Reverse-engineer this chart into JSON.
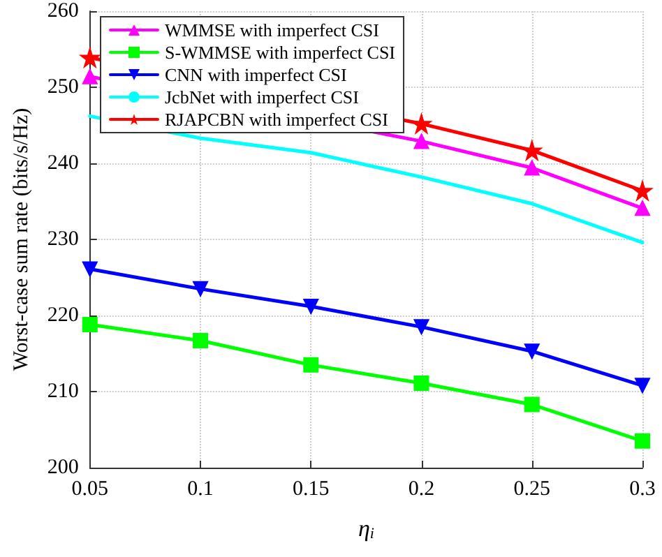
{
  "chart_data": {
    "type": "line",
    "xlabel": "η$_{i}$",
    "ylabel": "Worst-case sum rate (bits/s/Hz)",
    "x": [
      0.05,
      0.1,
      0.15,
      0.2,
      0.25,
      0.3
    ],
    "xlim": [
      0.05,
      0.3
    ],
    "xticks": [
      0.05,
      0.1,
      0.15,
      0.2,
      0.25,
      0.3
    ],
    "ylim": [
      200,
      260
    ],
    "yticks": [
      200,
      210,
      220,
      230,
      240,
      250,
      260
    ],
    "grid": true,
    "legend": "top left",
    "series": [
      {
        "name": "WMMSE with imperfect CSI",
        "color": "#ff00ff",
        "marker": "triangle",
        "values": [
          251.4,
          null,
          null,
          242.9,
          239.4,
          234.1
        ]
      },
      {
        "name": "S-WMMSE with imperfect CSI",
        "color": "#00ff00",
        "marker": "square",
        "values": [
          218.8,
          216.7,
          213.5,
          211.1,
          208.3,
          203.5
        ]
      },
      {
        "name": "CNN with imperfect CSI",
        "color": "#0000ff",
        "marker": "triangle-down",
        "values": [
          226.1,
          223.5,
          221.2,
          218.5,
          215.3,
          210.8
        ]
      },
      {
        "name": "JcbNet with imperfect CSI",
        "color": "#00ffff",
        "marker": "none",
        "values": [
          246.2,
          243.3,
          241.4,
          238.2,
          234.7,
          229.6
        ]
      },
      {
        "name": "RJAPCBN with imperfect CSI",
        "color": "#ff0000",
        "marker": "star",
        "values": [
          253.9,
          null,
          null,
          245.2,
          241.7,
          236.4
        ]
      }
    ]
  }
}
